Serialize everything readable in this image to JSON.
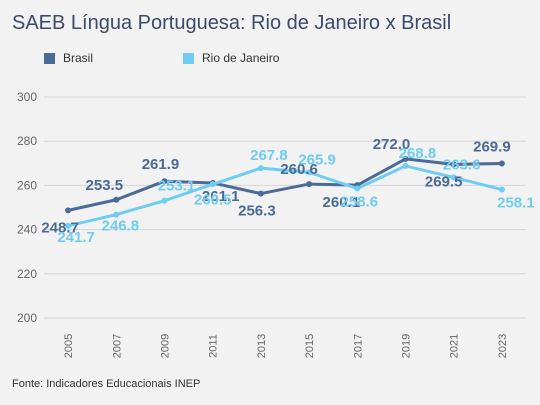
{
  "chart_data": {
    "type": "line",
    "title": "SAEB Língua Portuguesa: Rio de Janeiro x Brasil",
    "categories": [
      "2005",
      "2007",
      "2009",
      "2011",
      "2013",
      "2015",
      "2017",
      "2019",
      "2021",
      "2023"
    ],
    "y_ticks": [
      200,
      220,
      240,
      260,
      280,
      300
    ],
    "ylim": [
      200,
      300
    ],
    "grid": true,
    "legend_position": "top-left",
    "series": [
      {
        "name": "Brasil",
        "color": "#4a6a98",
        "values": [
          248.7,
          253.5,
          261.9,
          261.1,
          256.3,
          260.6,
          260.1,
          272.0,
          269.5,
          269.9
        ],
        "labels": [
          "248.7",
          "253.5",
          "261.9",
          "261.1",
          "256.3",
          "260.6",
          "260.1",
          "272.0",
          "269.5",
          "269.9"
        ]
      },
      {
        "name": "Rio de Janeiro",
        "color": "#6fcdf5",
        "values": [
          241.7,
          246.8,
          253.1,
          260.5,
          267.8,
          265.9,
          258.6,
          268.8,
          263.6,
          258.1
        ],
        "labels": [
          "241.7",
          "246.8",
          "253.1",
          "260.5",
          "267.8",
          "265.9",
          "258.6",
          "268.8",
          "263.6",
          "258.1"
        ]
      }
    ]
  },
  "footer": {
    "source": "Fonte: Indicadores Educacionais INEP"
  }
}
